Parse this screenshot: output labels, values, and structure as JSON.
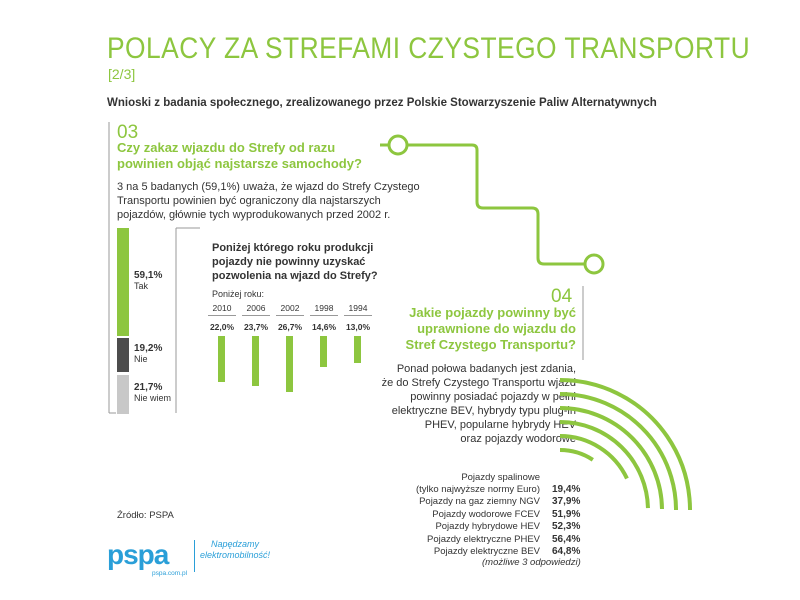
{
  "header": {
    "title": "POLACY ZA STREFAMI CZYSTEGO TRANSPORTU",
    "page": "[2/3]",
    "subtitle": "Wnioski z badania społecznego, zrealizowanego przez Polskie Stowarzyszenie Paliw Alternatywnych"
  },
  "section3": {
    "number": "03",
    "question_line1": "Czy zakaz wjazdu do Strefy od razu",
    "question_line2": "powinien objąć najstarsze samochody?",
    "body_line1": "3 na 5 badanych (59,1%) uważa, że wjazd do Strefy Czystego",
    "body_line2": "Transportu powinien być ograniczony dla najstarszych",
    "body_line3": "pojazdów, głównie tych wyprodukowanych przed 2002 r.",
    "sub_question_line1": "Poniżej którego roku produkcji",
    "sub_question_line2": "pojazdy nie powinny uzyskać",
    "sub_question_line3": "pozwolenia na wjazd do Strefy?",
    "below_label": "Poniżej roku:"
  },
  "section4": {
    "number": "04",
    "question_line1": "Jakie pojazdy powinny być",
    "question_line2": "uprawnione do wjazdu do",
    "question_line3": "Stref Czystego Transportu?",
    "body_line1": "Ponad połowa badanych jest zdania,",
    "body_line2": "że do Strefy Czystego Transportu wjazd",
    "body_line3": "powinny posiadać pojazdy w pełni",
    "body_line4": "elektryczne BEV, hybrydy typu plug-in",
    "body_line5": "PHEV, popularne hybrydy HEV",
    "body_line6": "oraz pojazdy wodorowe",
    "note": "(możliwe 3 odpowiedzi)"
  },
  "footer": {
    "source": "Źródło: PSPA",
    "logo": "pspa",
    "logo_url": "pspa.com.pl",
    "tagline_line1": "Napędzamy",
    "tagline_line2": "elektromobilność!"
  },
  "colors": {
    "green": "#8dc63f",
    "dark_gray": "#4d4d4d",
    "light_gray": "#c8c8c8",
    "blue": "#2a9fd8",
    "text": "#333333"
  },
  "chart_data": [
    {
      "type": "bar",
      "orientation": "stacked-vertical",
      "categories": [
        "Tak",
        "Nie",
        "Nie wiem"
      ],
      "labels": [
        "59,1%",
        "19,2%",
        "21,7%"
      ],
      "values": [
        59.1,
        19.2,
        21.7
      ],
      "colors": [
        "#8dc63f",
        "#4d4d4d",
        "#c8c8c8"
      ]
    },
    {
      "type": "bar",
      "categories": [
        "2010",
        "2006",
        "2002",
        "1998",
        "1994"
      ],
      "labels": [
        "22,0%",
        "23,7%",
        "26,7%",
        "14,6%",
        "13,0%"
      ],
      "values": [
        22.0,
        23.7,
        26.7,
        14.6,
        13.0
      ],
      "color": "#8dc63f"
    },
    {
      "type": "bar",
      "orientation": "radial",
      "categories": [
        "Pojazdy spalinowe",
        "Pojazdy na gaz ziemny NGV",
        "Pojazdy wodorowe FCEV",
        "Pojazdy hybrydowe HEV",
        "Pojazdy elektryczne PHEV",
        "Pojazdy elektryczne BEV"
      ],
      "category_notes": [
        "(tylko najwyższe normy Euro)",
        "",
        "",
        "",
        "",
        ""
      ],
      "labels": [
        "19,4%",
        "37,9%",
        "51,9%",
        "52,3%",
        "56,4%",
        "64,8%"
      ],
      "values": [
        19.4,
        37.9,
        51.9,
        52.3,
        56.4,
        64.8
      ],
      "color": "#8dc63f"
    }
  ]
}
